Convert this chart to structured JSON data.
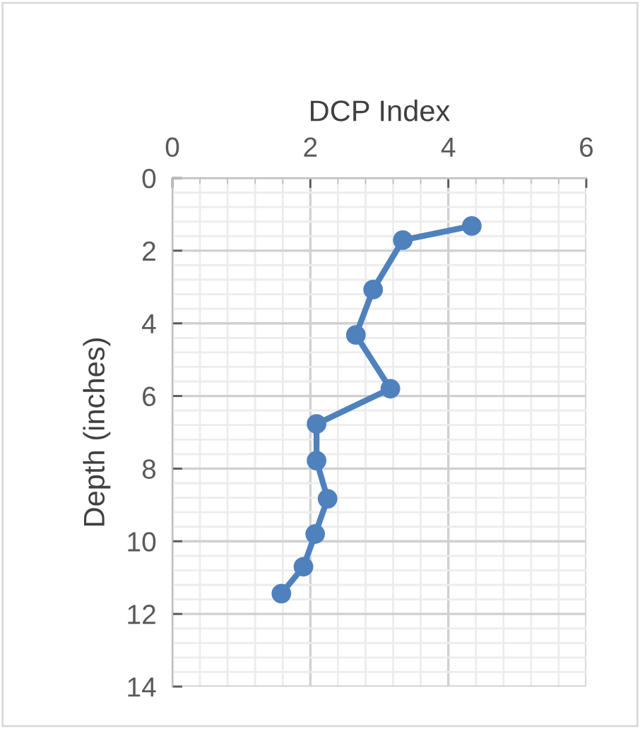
{
  "chart_data": {
    "type": "line",
    "xlabel": "DCP Index",
    "ylabel": "Depth (inches)",
    "series": [
      {
        "color": "#4f81bd",
        "x": [
          4.34,
          3.34,
          2.91,
          2.66,
          3.16,
          2.09,
          2.09,
          2.25,
          2.07,
          1.9,
          1.58
        ],
        "values": [
          1.32,
          1.71,
          3.07,
          4.32,
          5.8,
          6.77,
          7.78,
          8.83,
          9.8,
          10.7,
          11.44
        ]
      }
    ],
    "xlim": [
      0,
      6
    ],
    "xticks": [
      0,
      2,
      4,
      6
    ],
    "ylim": [
      14,
      0
    ],
    "yticks": [
      0,
      2,
      4,
      6,
      8,
      10,
      12,
      14
    ],
    "grid": true,
    "marker": "circle",
    "line_style": "solid"
  }
}
